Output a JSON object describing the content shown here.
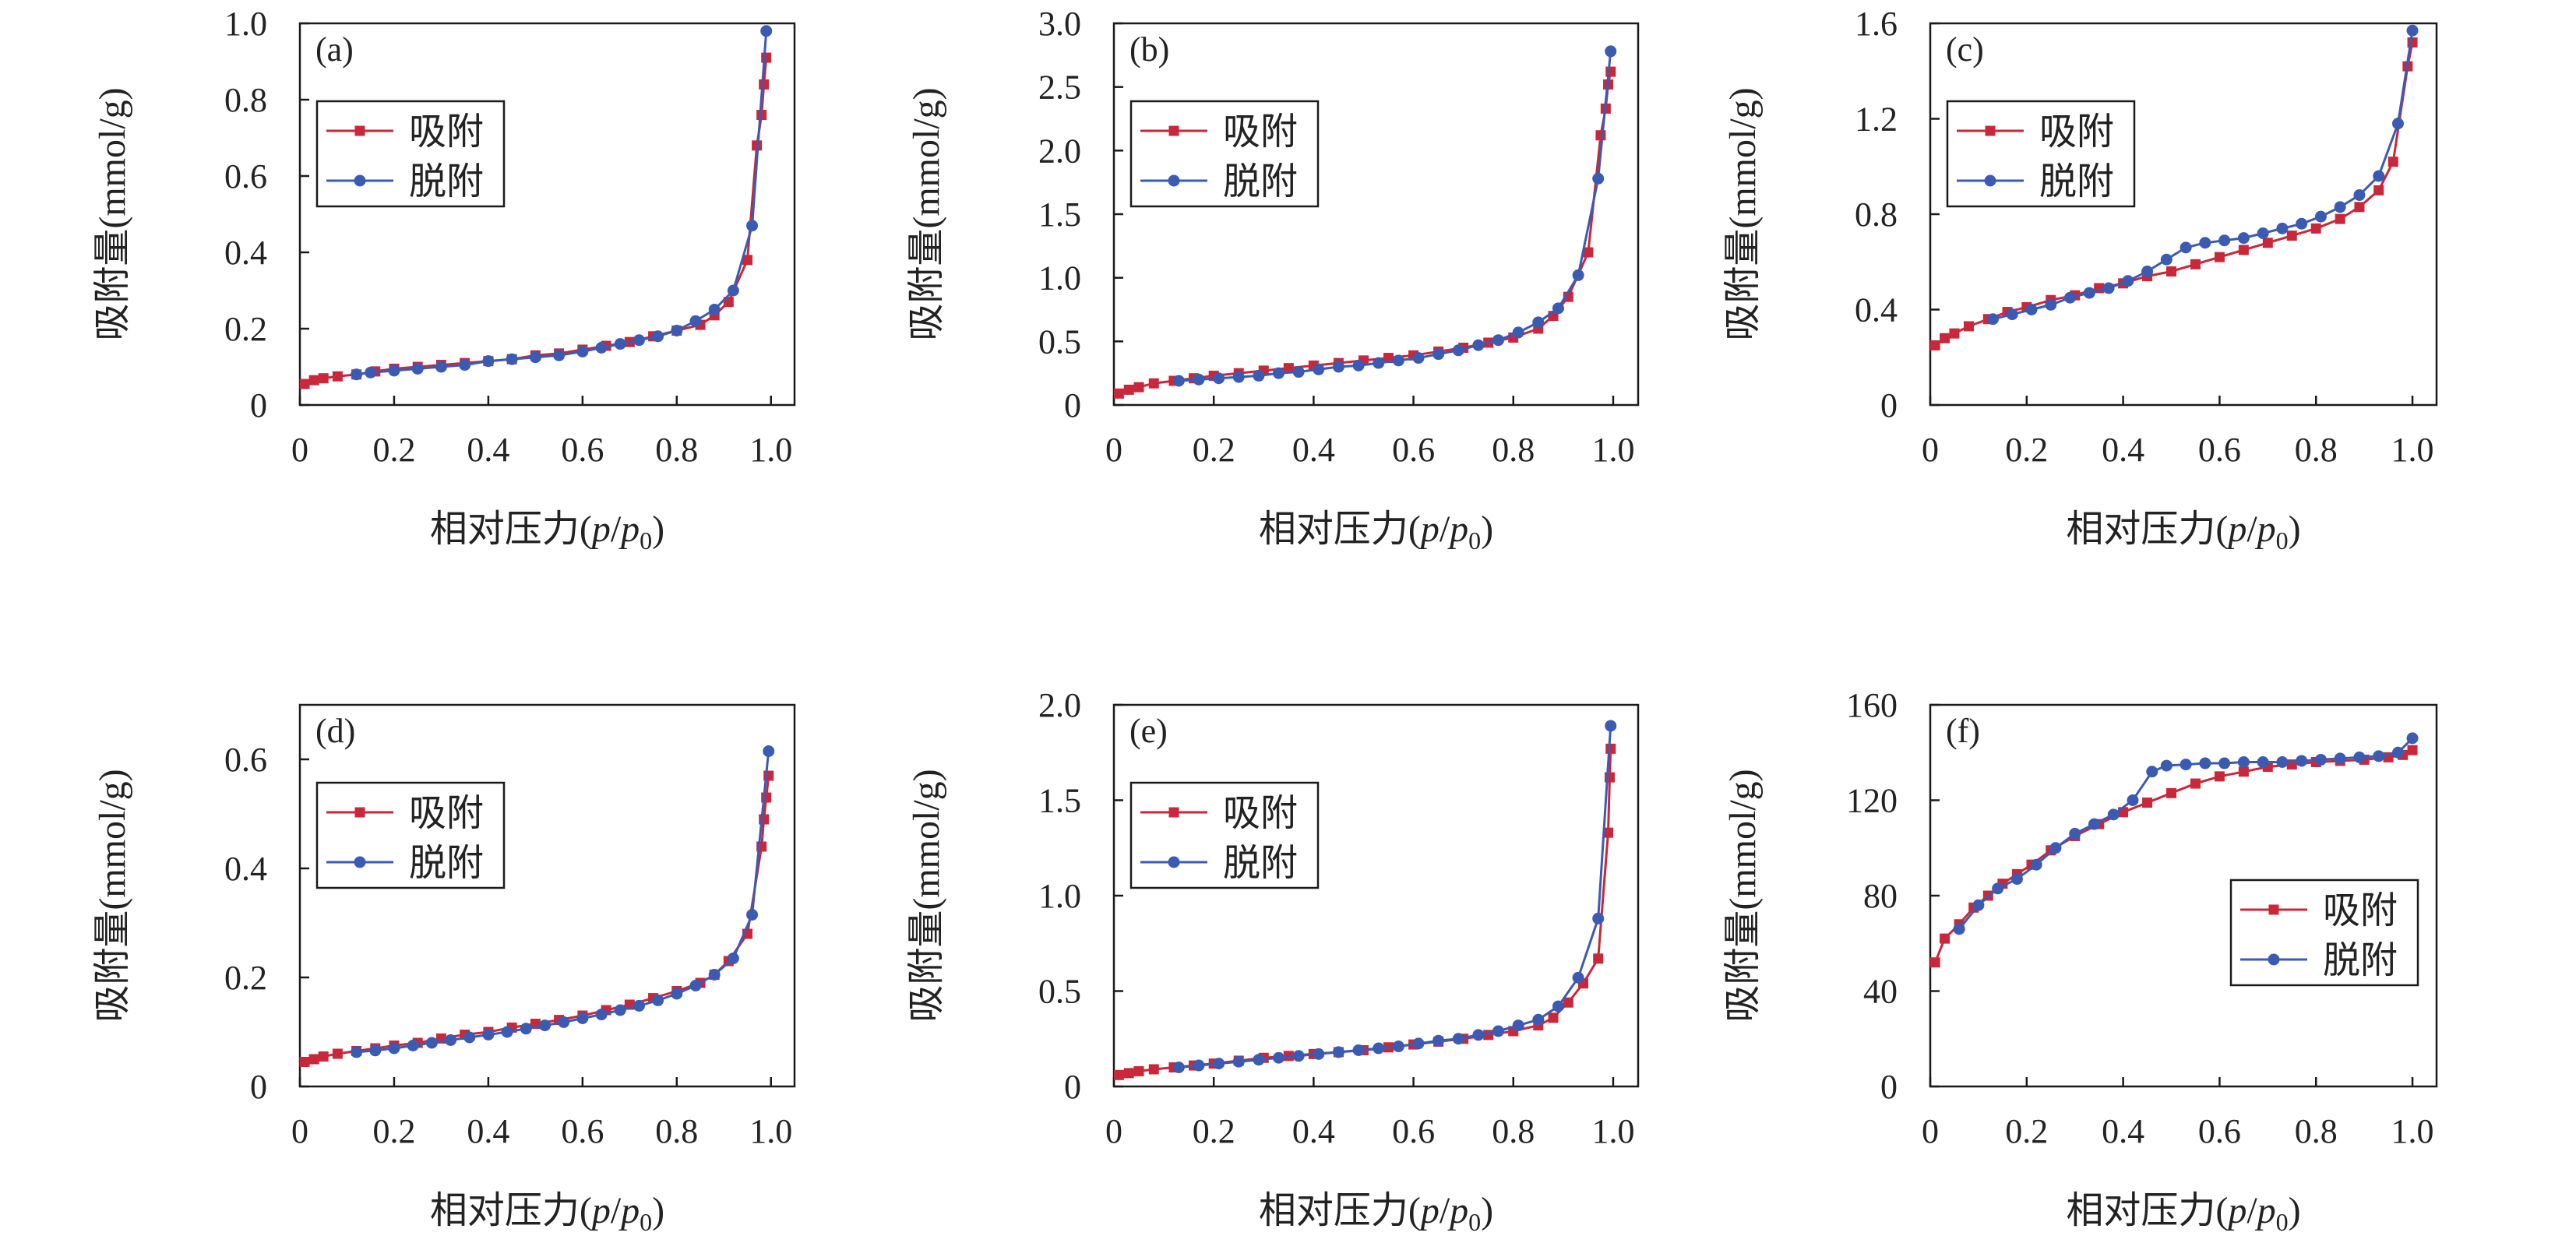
{
  "colors": {
    "adsorption": "#c8283a",
    "desorption": "#3b5bb3",
    "axis": "#1a1a1a"
  },
  "chart_data": [
    {
      "id": "a",
      "type": "line",
      "panel_label": "(a)",
      "xlabel": {
        "main": "相对压力(",
        "p1": "p",
        "slash": "/",
        "p2": "p",
        "sub": "0",
        "close": ")"
      },
      "ylabel": "吸附量(mmol/g)",
      "xlim": [
        0,
        1.05
      ],
      "ylim": [
        0,
        1.0
      ],
      "xticks": [
        "0",
        "0.2",
        "0.4",
        "0.6",
        "0.8",
        "1.0"
      ],
      "yticks": [
        "0",
        "0.2",
        "0.4",
        "0.6",
        "0.8",
        "1.0"
      ],
      "legend_position": "upper-left",
      "grid": false,
      "series": [
        {
          "name": "吸附",
          "marker": "square",
          "x": [
            0.01,
            0.03,
            0.05,
            0.08,
            0.12,
            0.16,
            0.2,
            0.25,
            0.3,
            0.35,
            0.4,
            0.45,
            0.5,
            0.55,
            0.6,
            0.65,
            0.7,
            0.75,
            0.8,
            0.85,
            0.88,
            0.91,
            0.95,
            0.97,
            0.98,
            0.985,
            0.99
          ],
          "y": [
            0.055,
            0.065,
            0.07,
            0.075,
            0.08,
            0.088,
            0.095,
            0.1,
            0.105,
            0.11,
            0.115,
            0.12,
            0.13,
            0.135,
            0.145,
            0.155,
            0.165,
            0.18,
            0.195,
            0.21,
            0.235,
            0.27,
            0.38,
            0.68,
            0.76,
            0.84,
            0.91
          ]
        },
        {
          "name": "脱附",
          "marker": "circle",
          "x": [
            0.99,
            0.96,
            0.92,
            0.88,
            0.84,
            0.8,
            0.76,
            0.72,
            0.68,
            0.64,
            0.6,
            0.55,
            0.5,
            0.45,
            0.4,
            0.35,
            0.3,
            0.25,
            0.2,
            0.15,
            0.12
          ],
          "y": [
            0.98,
            0.47,
            0.3,
            0.25,
            0.22,
            0.195,
            0.18,
            0.17,
            0.16,
            0.15,
            0.14,
            0.13,
            0.125,
            0.12,
            0.115,
            0.105,
            0.1,
            0.095,
            0.09,
            0.085,
            0.08
          ]
        }
      ]
    },
    {
      "id": "b",
      "type": "line",
      "panel_label": "(b)",
      "xlabel": {
        "main": "相对压力(",
        "p1": "p",
        "slash": "/",
        "p2": "p",
        "sub": "0",
        "close": ")"
      },
      "ylabel": "吸附量(mmol/g)",
      "xlim": [
        0,
        1.05
      ],
      "ylim": [
        0,
        3.0
      ],
      "xticks": [
        "0",
        "0.2",
        "0.4",
        "0.6",
        "0.8",
        "1.0"
      ],
      "yticks": [
        "0",
        "0.5",
        "1.0",
        "1.5",
        "2.0",
        "2.5",
        "3.0"
      ],
      "legend_position": "upper-left",
      "grid": false,
      "series": [
        {
          "name": "吸附",
          "marker": "square",
          "x": [
            0.01,
            0.03,
            0.05,
            0.08,
            0.12,
            0.16,
            0.2,
            0.25,
            0.3,
            0.35,
            0.4,
            0.45,
            0.5,
            0.55,
            0.6,
            0.65,
            0.7,
            0.75,
            0.8,
            0.85,
            0.88,
            0.91,
            0.95,
            0.975,
            0.985,
            0.99,
            0.995
          ],
          "y": [
            0.09,
            0.12,
            0.14,
            0.17,
            0.19,
            0.21,
            0.23,
            0.25,
            0.27,
            0.29,
            0.31,
            0.33,
            0.35,
            0.37,
            0.39,
            0.42,
            0.45,
            0.49,
            0.53,
            0.6,
            0.7,
            0.85,
            1.2,
            2.12,
            2.33,
            2.52,
            2.62
          ]
        },
        {
          "name": "脱附",
          "marker": "circle",
          "x": [
            0.995,
            0.97,
            0.93,
            0.89,
            0.85,
            0.81,
            0.77,
            0.73,
            0.69,
            0.65,
            0.61,
            0.57,
            0.53,
            0.49,
            0.45,
            0.41,
            0.37,
            0.33,
            0.29,
            0.25,
            0.21,
            0.17,
            0.13
          ],
          "y": [
            2.78,
            1.78,
            1.02,
            0.76,
            0.65,
            0.57,
            0.51,
            0.47,
            0.43,
            0.4,
            0.37,
            0.35,
            0.33,
            0.31,
            0.3,
            0.28,
            0.26,
            0.25,
            0.23,
            0.22,
            0.21,
            0.2,
            0.19
          ]
        }
      ]
    },
    {
      "id": "c",
      "type": "line",
      "panel_label": "(c)",
      "xlabel": {
        "main": "相对压力(",
        "p1": "p",
        "slash": "/",
        "p2": "p",
        "sub": "0",
        "close": ")"
      },
      "ylabel": "吸附量(mmol/g)",
      "xlim": [
        0,
        1.05
      ],
      "ylim": [
        0,
        1.6
      ],
      "xticks": [
        "0",
        "0.2",
        "0.4",
        "0.6",
        "0.8",
        "1.0"
      ],
      "yticks": [
        "0",
        "0.4",
        "0.8",
        "1.2",
        "1.6"
      ],
      "legend_position": "upper-left",
      "grid": false,
      "series": [
        {
          "name": "吸附",
          "marker": "square",
          "x": [
            0.01,
            0.03,
            0.05,
            0.08,
            0.12,
            0.16,
            0.2,
            0.25,
            0.3,
            0.35,
            0.4,
            0.45,
            0.5,
            0.55,
            0.6,
            0.65,
            0.7,
            0.75,
            0.8,
            0.85,
            0.89,
            0.93,
            0.96,
            0.99,
            1.0
          ],
          "y": [
            0.25,
            0.28,
            0.3,
            0.33,
            0.36,
            0.39,
            0.41,
            0.44,
            0.46,
            0.49,
            0.51,
            0.54,
            0.56,
            0.59,
            0.62,
            0.65,
            0.68,
            0.71,
            0.74,
            0.78,
            0.83,
            0.9,
            1.02,
            1.42,
            1.52
          ]
        },
        {
          "name": "脱附",
          "marker": "circle",
          "x": [
            1.0,
            0.97,
            0.93,
            0.89,
            0.85,
            0.81,
            0.77,
            0.73,
            0.69,
            0.65,
            0.61,
            0.57,
            0.53,
            0.49,
            0.45,
            0.41,
            0.37,
            0.33,
            0.29,
            0.25,
            0.21,
            0.17,
            0.13
          ],
          "y": [
            1.57,
            1.18,
            0.96,
            0.88,
            0.83,
            0.79,
            0.76,
            0.74,
            0.72,
            0.7,
            0.69,
            0.68,
            0.66,
            0.61,
            0.56,
            0.52,
            0.49,
            0.47,
            0.45,
            0.42,
            0.4,
            0.38,
            0.36
          ]
        }
      ]
    },
    {
      "id": "d",
      "type": "line",
      "panel_label": "(d)",
      "xlabel": {
        "main": "相对压力(",
        "p1": "p",
        "slash": "/",
        "p2": "p",
        "sub": "0",
        "close": ")"
      },
      "ylabel": "吸附量(mmol/g)",
      "xlim": [
        0,
        1.05
      ],
      "ylim": [
        0,
        0.7
      ],
      "xticks": [
        "0",
        "0.2",
        "0.4",
        "0.6",
        "0.8",
        "1.0"
      ],
      "yticks": [
        "0",
        "0.2",
        "0.4",
        "0.6"
      ],
      "legend_position": "upper-left",
      "grid": false,
      "series": [
        {
          "name": "吸附",
          "marker": "square",
          "x": [
            0.01,
            0.03,
            0.05,
            0.08,
            0.12,
            0.16,
            0.2,
            0.25,
            0.3,
            0.35,
            0.4,
            0.45,
            0.5,
            0.55,
            0.6,
            0.65,
            0.7,
            0.75,
            0.8,
            0.85,
            0.88,
            0.91,
            0.95,
            0.98,
            0.985,
            0.99,
            0.995
          ],
          "y": [
            0.045,
            0.05,
            0.055,
            0.06,
            0.065,
            0.07,
            0.075,
            0.08,
            0.088,
            0.095,
            0.1,
            0.108,
            0.115,
            0.122,
            0.13,
            0.14,
            0.15,
            0.162,
            0.175,
            0.19,
            0.205,
            0.23,
            0.28,
            0.44,
            0.49,
            0.53,
            0.57
          ]
        },
        {
          "name": "脱附",
          "marker": "circle",
          "x": [
            0.995,
            0.96,
            0.92,
            0.88,
            0.84,
            0.8,
            0.76,
            0.72,
            0.68,
            0.64,
            0.6,
            0.56,
            0.52,
            0.48,
            0.44,
            0.4,
            0.36,
            0.32,
            0.28,
            0.24,
            0.2,
            0.16,
            0.12
          ],
          "y": [
            0.615,
            0.315,
            0.235,
            0.205,
            0.185,
            0.17,
            0.158,
            0.148,
            0.14,
            0.132,
            0.125,
            0.118,
            0.112,
            0.106,
            0.1,
            0.095,
            0.09,
            0.085,
            0.08,
            0.075,
            0.07,
            0.066,
            0.063
          ]
        }
      ]
    },
    {
      "id": "e",
      "type": "line",
      "panel_label": "(e)",
      "xlabel": {
        "main": "相对压力(",
        "p1": "p",
        "slash": "/",
        "p2": "p",
        "sub": "0",
        "close": ")"
      },
      "ylabel": "吸附量(mmol/g)",
      "xlim": [
        0,
        1.05
      ],
      "ylim": [
        0,
        2.0
      ],
      "xticks": [
        "0",
        "0.2",
        "0.4",
        "0.6",
        "0.8",
        "1.0"
      ],
      "yticks": [
        "0",
        "0.5",
        "1.0",
        "1.5",
        "2.0"
      ],
      "legend_position": "upper-left",
      "grid": false,
      "series": [
        {
          "name": "吸附",
          "marker": "square",
          "x": [
            0.01,
            0.03,
            0.05,
            0.08,
            0.12,
            0.16,
            0.2,
            0.25,
            0.3,
            0.35,
            0.4,
            0.45,
            0.5,
            0.55,
            0.6,
            0.65,
            0.7,
            0.75,
            0.8,
            0.85,
            0.88,
            0.91,
            0.94,
            0.97,
            0.99,
            0.993,
            0.995
          ],
          "y": [
            0.06,
            0.07,
            0.08,
            0.09,
            0.1,
            0.11,
            0.12,
            0.135,
            0.15,
            0.16,
            0.17,
            0.18,
            0.19,
            0.205,
            0.22,
            0.235,
            0.25,
            0.27,
            0.29,
            0.32,
            0.36,
            0.44,
            0.54,
            0.67,
            1.33,
            1.62,
            1.77
          ]
        },
        {
          "name": "脱附",
          "marker": "circle",
          "x": [
            0.995,
            0.97,
            0.93,
            0.89,
            0.85,
            0.81,
            0.77,
            0.73,
            0.69,
            0.65,
            0.61,
            0.57,
            0.53,
            0.49,
            0.45,
            0.41,
            0.37,
            0.33,
            0.29,
            0.25,
            0.21,
            0.17,
            0.13
          ],
          "y": [
            1.89,
            0.88,
            0.57,
            0.42,
            0.35,
            0.32,
            0.29,
            0.27,
            0.25,
            0.24,
            0.225,
            0.21,
            0.2,
            0.19,
            0.18,
            0.17,
            0.16,
            0.15,
            0.14,
            0.13,
            0.12,
            0.11,
            0.1
          ]
        }
      ]
    },
    {
      "id": "f",
      "type": "line",
      "panel_label": "(f)",
      "xlabel": {
        "main": "相对压力(",
        "p1": "p",
        "slash": "/",
        "p2": "p",
        "sub": "0",
        "close": ")"
      },
      "ylabel": "吸附量(mmol/g)",
      "xlim": [
        0,
        1.05
      ],
      "ylim": [
        0,
        160
      ],
      "xticks": [
        "0",
        "0.2",
        "0.4",
        "0.6",
        "0.8",
        "1.0"
      ],
      "yticks": [
        "0",
        "40",
        "80",
        "120",
        "160"
      ],
      "legend_position": "lower-right",
      "grid": false,
      "series": [
        {
          "name": "吸附",
          "marker": "square",
          "x": [
            0.01,
            0.03,
            0.06,
            0.09,
            0.12,
            0.15,
            0.18,
            0.21,
            0.25,
            0.3,
            0.35,
            0.4,
            0.45,
            0.5,
            0.55,
            0.6,
            0.65,
            0.7,
            0.75,
            0.8,
            0.85,
            0.9,
            0.95,
            0.98,
            1.0
          ],
          "y": [
            52,
            62,
            68,
            75,
            80,
            85,
            89,
            93,
            99,
            105,
            110,
            115,
            119,
            123,
            127,
            130,
            132,
            134,
            135,
            136,
            136.5,
            137,
            138,
            139,
            141
          ]
        },
        {
          "name": "脱附",
          "marker": "circle",
          "x": [
            1.0,
            0.97,
            0.93,
            0.89,
            0.85,
            0.81,
            0.77,
            0.73,
            0.69,
            0.65,
            0.61,
            0.57,
            0.53,
            0.49,
            0.46,
            0.42,
            0.38,
            0.34,
            0.3,
            0.26,
            0.22,
            0.18,
            0.14,
            0.1,
            0.06
          ],
          "y": [
            146,
            140,
            138.5,
            138,
            137.5,
            137,
            136.5,
            136,
            136,
            136,
            135.5,
            135.5,
            135,
            134.5,
            132,
            120,
            114,
            110,
            106,
            100,
            93,
            87,
            83,
            76,
            66
          ]
        }
      ]
    }
  ]
}
